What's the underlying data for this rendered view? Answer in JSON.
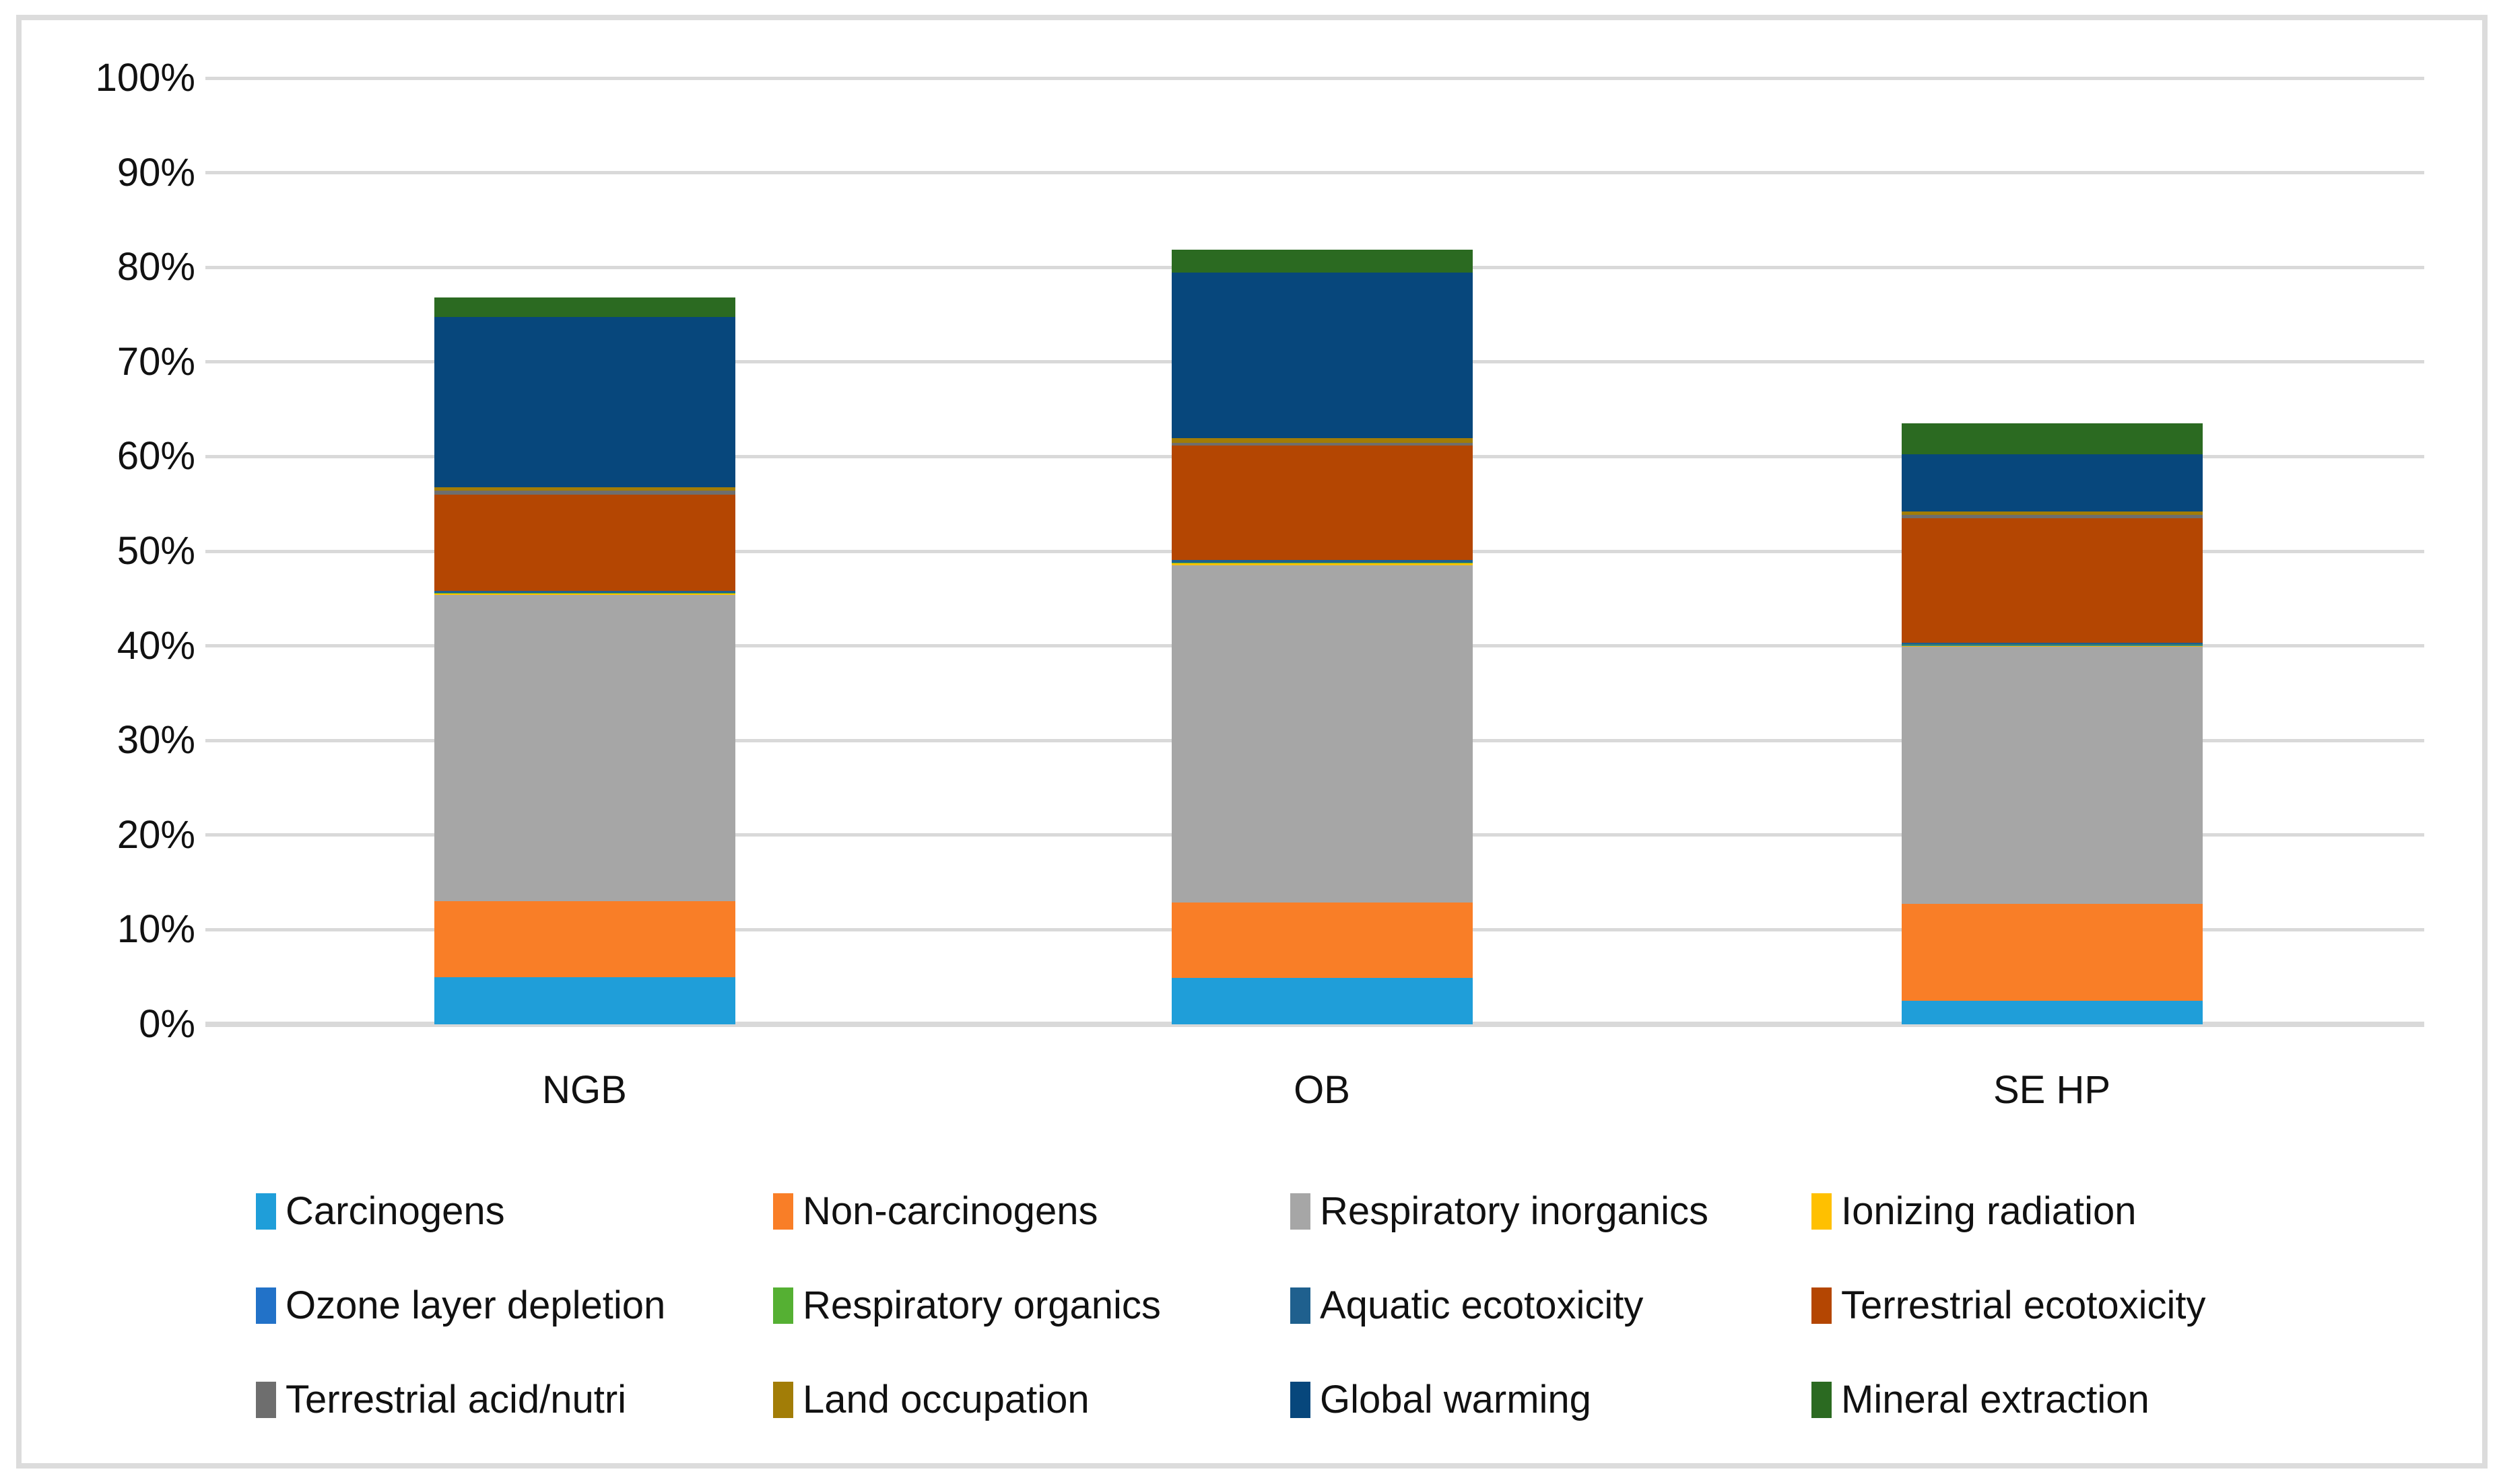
{
  "figure": {
    "background_color": "#FFFFFF",
    "border_color": "#DCDCDC",
    "gridline_color": "#D9D9D9"
  },
  "chart_data": {
    "type": "bar",
    "stacked": true,
    "title": "",
    "xlabel": "",
    "ylabel": "",
    "categories": [
      "NGB",
      "OB",
      "SE HP"
    ],
    "y_ticks": [
      "0%",
      "10%",
      "20%",
      "30%",
      "40%",
      "50%",
      "60%",
      "70%",
      "80%",
      "90%",
      "100%"
    ],
    "ylim": [
      0,
      100
    ],
    "grid": true,
    "legend_position": "bottom",
    "bar_totals_pct": [
      76.9,
      81.8,
      63.5
    ],
    "series": [
      {
        "name": "Carcinogens",
        "color": "#1F9ED9",
        "values": [
          5.0,
          4.9,
          2.5
        ]
      },
      {
        "name": "Non-carcinogens",
        "color": "#F97E27",
        "values": [
          8.0,
          8.0,
          10.2
        ]
      },
      {
        "name": "Respiratory inorganics",
        "color": "#A6A6A6",
        "values": [
          32.4,
          35.6,
          27.2
        ]
      },
      {
        "name": "Ionizing radiation",
        "color": "#FFC000",
        "values": [
          0.1,
          0.19,
          0.1
        ]
      },
      {
        "name": "Ozone layer depletion",
        "color": "#2272C8",
        "values": [
          0.05,
          0.05,
          0.05
        ]
      },
      {
        "name": "Respiratory organics",
        "color": "#55B033",
        "values": [
          0.05,
          0.05,
          0.05
        ]
      },
      {
        "name": "Aquatic ecotoxicity",
        "color": "#1F608E",
        "values": [
          0.2,
          0.26,
          0.2
        ]
      },
      {
        "name": "Terrestrial ecotoxicity",
        "color": "#B44602",
        "values": [
          10.2,
          12.1,
          13.2
        ]
      },
      {
        "name": "Terrestrial acid/nutri",
        "color": "#6E6E6E",
        "values": [
          0.38,
          0.33,
          0.36
        ]
      },
      {
        "name": "Land occupation",
        "color": "#A27D07",
        "values": [
          0.36,
          0.46,
          0.36
        ]
      },
      {
        "name": "Global warming",
        "color": "#07477C",
        "values": [
          18.0,
          17.5,
          6.0
        ]
      },
      {
        "name": "Mineral extraction",
        "color": "#2B6A21",
        "values": [
          2.1,
          2.4,
          3.3
        ]
      }
    ]
  }
}
